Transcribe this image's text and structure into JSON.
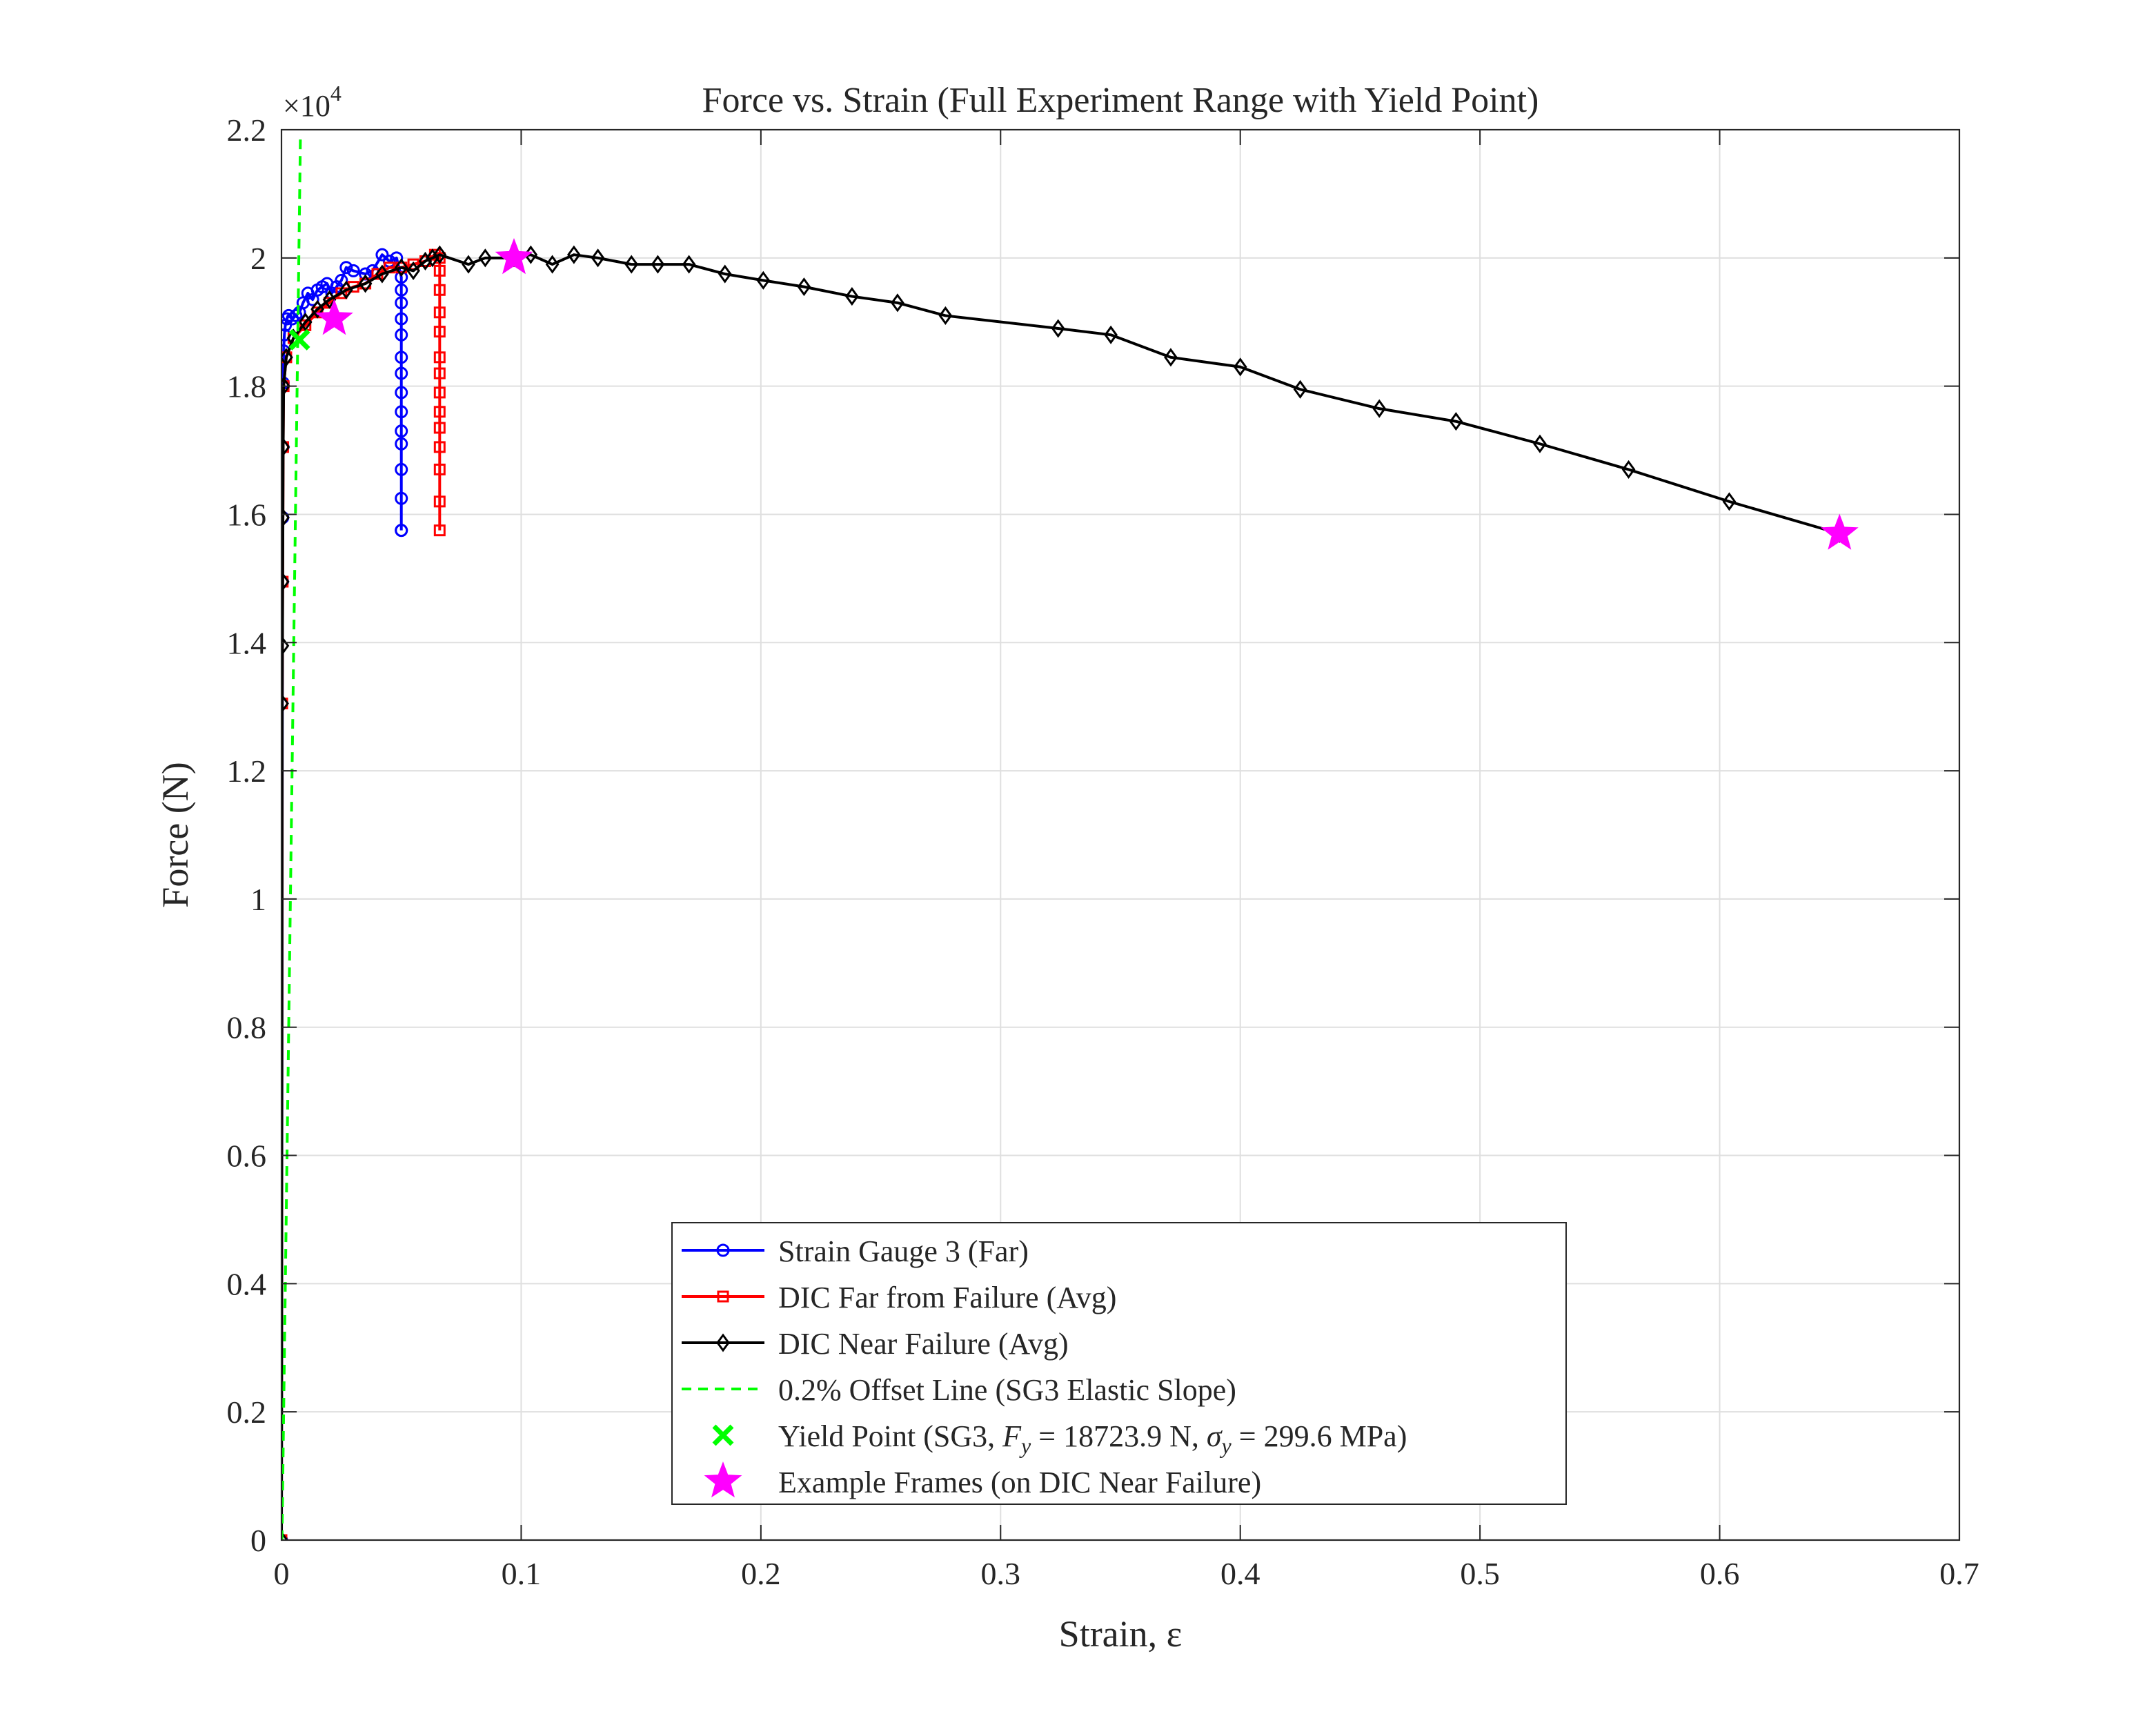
{
  "chart_data": {
    "type": "line",
    "title": "Force vs. Strain (Full Experiment Range with Yield Point)",
    "xlabel": "Strain, ε",
    "ylabel": "Force (N)",
    "y_exponent_label": "×10",
    "y_exponent_power": "4",
    "xlim": [
      0,
      0.7
    ],
    "ylim": [
      0,
      22000
    ],
    "x_ticks": [
      {
        "value": 0,
        "label": "0"
      },
      {
        "value": 0.1,
        "label": "0.1"
      },
      {
        "value": 0.2,
        "label": "0.2"
      },
      {
        "value": 0.3,
        "label": "0.3"
      },
      {
        "value": 0.4,
        "label": "0.4"
      },
      {
        "value": 0.5,
        "label": "0.5"
      },
      {
        "value": 0.6,
        "label": "0.6"
      },
      {
        "value": 0.7,
        "label": "0.7"
      }
    ],
    "y_ticks": [
      {
        "value": 0,
        "label": "0"
      },
      {
        "value": 2000,
        "label": "0.2"
      },
      {
        "value": 4000,
        "label": "0.4"
      },
      {
        "value": 6000,
        "label": "0.6"
      },
      {
        "value": 8000,
        "label": "0.8"
      },
      {
        "value": 10000,
        "label": "1"
      },
      {
        "value": 12000,
        "label": "1.2"
      },
      {
        "value": 14000,
        "label": "1.4"
      },
      {
        "value": 16000,
        "label": "1.6"
      },
      {
        "value": 18000,
        "label": "1.8"
      },
      {
        "value": 20000,
        "label": "2"
      },
      {
        "value": 22000,
        "label": "2.2"
      }
    ],
    "grid": true,
    "legend_position": "bottom-center",
    "series": [
      {
        "name": "Strain Gauge 3 (Far)",
        "color": "#0000ff",
        "marker": "circle",
        "line": "solid",
        "x": [
          0,
          0.0004,
          0.0005,
          0.0006,
          0.0007,
          0.0009,
          0.0012,
          0.0016,
          0.0022,
          0.003,
          0.0045,
          0.006,
          0.0075,
          0.009,
          0.011,
          0.013,
          0.015,
          0.017,
          0.019,
          0.021,
          0.023,
          0.025,
          0.027,
          0.03,
          0.035,
          0.038,
          0.042,
          0.045,
          0.048,
          0.05,
          0.05,
          0.05,
          0.05,
          0.05,
          0.05,
          0.05,
          0.05,
          0.05,
          0.05,
          0.05,
          0.05,
          0.05,
          0.05,
          0.05
        ],
        "y": [
          0,
          14950,
          15950,
          17050,
          18050,
          18550,
          18800,
          18950,
          19050,
          19100,
          19050,
          19100,
          19150,
          19300,
          19450,
          19350,
          19500,
          19550,
          19600,
          19450,
          19550,
          19650,
          19850,
          19800,
          19750,
          19800,
          20050,
          19950,
          20000,
          19700,
          19500,
          19300,
          19050,
          18800,
          18450,
          18200,
          17900,
          17600,
          17300,
          17100,
          16700,
          16250,
          15750,
          15750
        ]
      },
      {
        "name": "DIC Far from Failure (Avg)",
        "color": "#ff0000",
        "marker": "square",
        "line": "solid",
        "x": [
          0,
          0.0003,
          0.0005,
          0.0007,
          0.0009,
          0.002,
          0.005,
          0.01,
          0.015,
          0.02,
          0.025,
          0.03,
          0.035,
          0.04,
          0.045,
          0.05,
          0.055,
          0.06,
          0.064,
          0.066,
          0.066,
          0.066,
          0.066,
          0.066,
          0.066,
          0.066,
          0.066,
          0.066,
          0.066,
          0.066,
          0.066,
          0.066,
          0.066
        ],
        "y": [
          0,
          13050,
          14950,
          17050,
          18000,
          18450,
          18750,
          18950,
          19150,
          19300,
          19450,
          19550,
          19600,
          19750,
          19850,
          19850,
          19900,
          19950,
          20050,
          20000,
          19800,
          19500,
          19150,
          18850,
          18450,
          18200,
          17900,
          17600,
          17350,
          17050,
          16700,
          16200,
          15750
        ]
      },
      {
        "name": "DIC Near Failure (Avg)",
        "color": "#000000",
        "marker": "diamond",
        "line": "solid",
        "x": [
          0,
          0.0003,
          0.0004,
          0.0005,
          0.0006,
          0.0007,
          0.0009,
          0.002,
          0.005,
          0.01,
          0.015,
          0.02,
          0.027,
          0.035,
          0.042,
          0.05,
          0.055,
          0.06,
          0.063,
          0.066,
          0.078,
          0.085,
          0.097,
          0.104,
          0.113,
          0.122,
          0.132,
          0.146,
          0.157,
          0.17,
          0.185,
          0.201,
          0.218,
          0.238,
          0.257,
          0.277,
          0.324,
          0.346,
          0.371,
          0.4,
          0.425,
          0.458,
          0.49,
          0.525,
          0.562,
          0.604,
          0.65
        ],
        "y": [
          0,
          13050,
          13950,
          14950,
          15950,
          17050,
          18000,
          18450,
          18750,
          19000,
          19200,
          19350,
          19500,
          19600,
          19750,
          19850,
          19800,
          19950,
          20000,
          20050,
          19900,
          20000,
          20000,
          20050,
          19900,
          20050,
          20000,
          19900,
          19900,
          19900,
          19750,
          19650,
          19550,
          19400,
          19300,
          19100,
          18900,
          18800,
          18450,
          18300,
          17950,
          17650,
          17450,
          17100,
          16700,
          16200,
          15700
        ]
      },
      {
        "name": "0.2% Offset Line (SG3 Elastic Slope)",
        "color": "#00ff00",
        "marker": "none",
        "line": "dashed",
        "x": [
          0.0002,
          0.0079
        ],
        "y": [
          0,
          21900
        ]
      }
    ],
    "yield_point": {
      "name": "Yield Point (SG3, ",
      "legend_parts": [
        "Yield Point (SG3, ",
        "F",
        "y",
        " = 18723.9 N, ",
        "σ",
        "y",
        " = 299.6 MPa)"
      ],
      "color": "#00ff00",
      "marker": "x",
      "x": 0.0075,
      "y": 18723.9,
      "F_y": "18723.9 N",
      "sigma_y": "299.6 MPa"
    },
    "example_frames": {
      "name": "Example Frames (on DIC Near Failure)",
      "color": "#ff00ff",
      "marker": "star",
      "x": [
        0.022,
        0.097,
        0.65
      ],
      "y": [
        19050,
        20000,
        15700
      ]
    }
  }
}
